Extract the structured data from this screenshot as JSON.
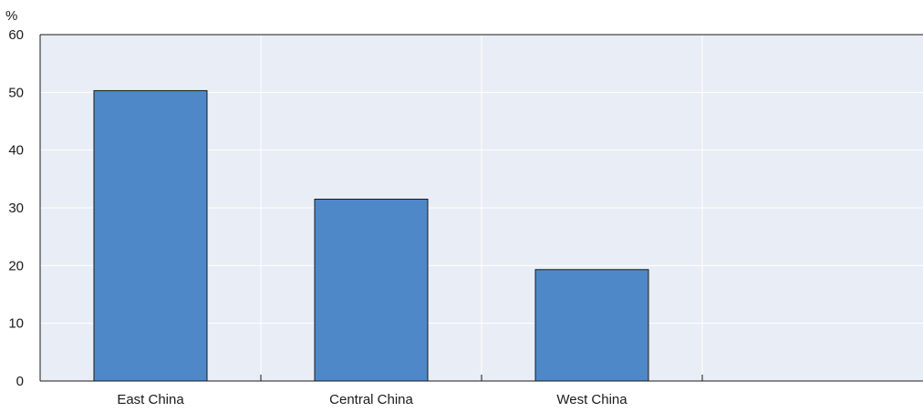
{
  "chart_data": {
    "type": "bar",
    "title": "",
    "xlabel": "",
    "ylabel": "%",
    "categories": [
      "East China",
      "Central China",
      "West China"
    ],
    "values": [
      50.3,
      31.5,
      19.3
    ],
    "ylim": [
      0,
      60
    ],
    "yticks": [
      0,
      10,
      20,
      30,
      40,
      50,
      60
    ],
    "grid": true,
    "legend": "none",
    "colors": {
      "bar_fill": "#4e88c8",
      "bar_stroke": "#1a1a1a",
      "plot_bg": "#e9edf6",
      "grid": "#ffffff",
      "axis": "#1a1a1a"
    }
  }
}
